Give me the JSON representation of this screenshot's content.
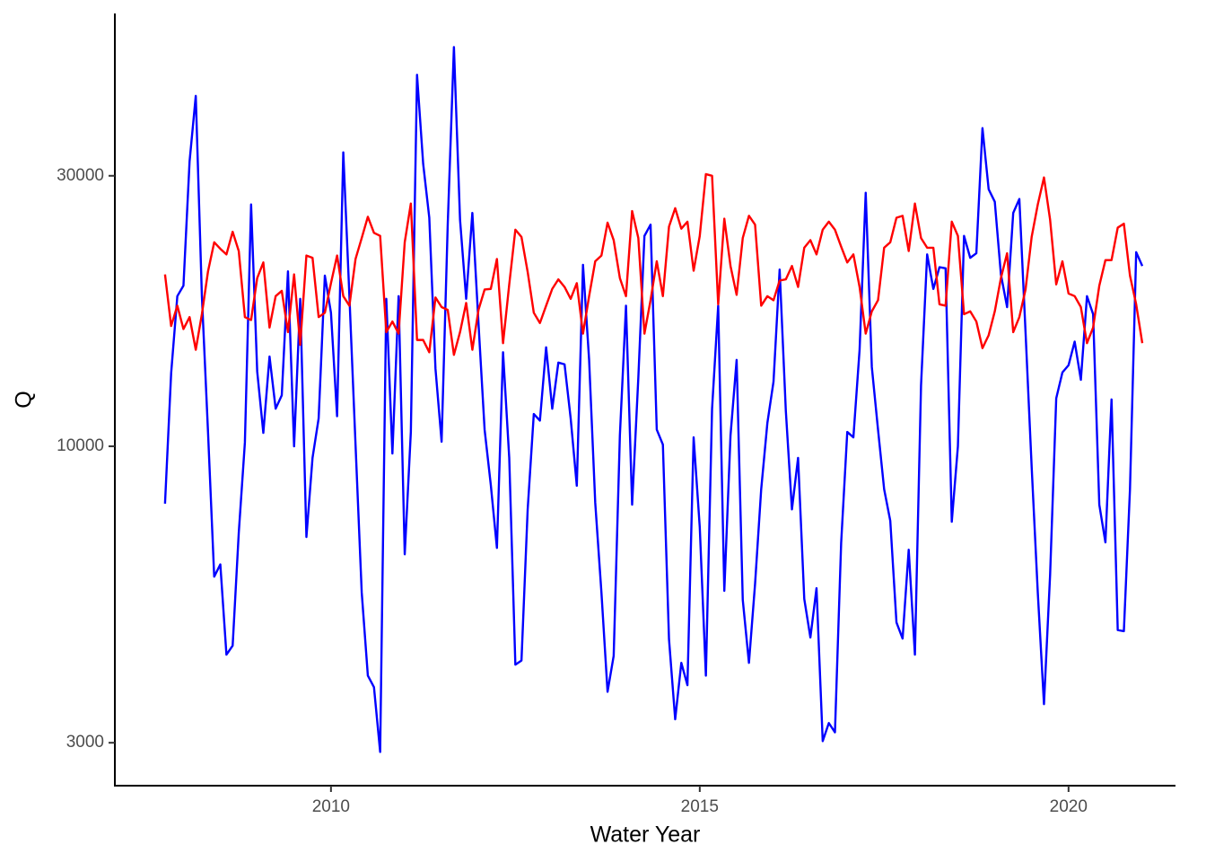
{
  "chart_data": {
    "type": "line",
    "x_label": "Water Year",
    "y_label": "Q",
    "log_y": true,
    "grid": false,
    "xlim": [
      2007.07,
      2021.45
    ],
    "xticks": [
      2010,
      2015,
      2020
    ],
    "ylim": [
      2520,
      58000
    ],
    "yticks": [
      3000,
      10000,
      30000
    ],
    "x": [
      2007.75,
      2007.833,
      2007.917,
      2008.0,
      2008.083,
      2008.167,
      2008.25,
      2008.333,
      2008.417,
      2008.5,
      2008.583,
      2008.667,
      2008.75,
      2008.833,
      2008.917,
      2009.0,
      2009.083,
      2009.167,
      2009.25,
      2009.333,
      2009.417,
      2009.5,
      2009.583,
      2009.667,
      2009.75,
      2009.833,
      2009.917,
      2010.0,
      2010.083,
      2010.167,
      2010.25,
      2010.333,
      2010.417,
      2010.5,
      2010.583,
      2010.667,
      2010.75,
      2010.833,
      2010.917,
      2011.0,
      2011.083,
      2011.167,
      2011.25,
      2011.333,
      2011.417,
      2011.5,
      2011.583,
      2011.667,
      2011.75,
      2011.833,
      2011.917,
      2012.0,
      2012.083,
      2012.167,
      2012.25,
      2012.333,
      2012.417,
      2012.5,
      2012.583,
      2012.667,
      2012.75,
      2012.833,
      2012.917,
      2013.0,
      2013.083,
      2013.167,
      2013.25,
      2013.333,
      2013.417,
      2013.5,
      2013.583,
      2013.667,
      2013.75,
      2013.833,
      2013.917,
      2014.0,
      2014.083,
      2014.167,
      2014.25,
      2014.333,
      2014.417,
      2014.5,
      2014.583,
      2014.667,
      2014.75,
      2014.833,
      2014.917,
      2015.0,
      2015.083,
      2015.167,
      2015.25,
      2015.333,
      2015.417,
      2015.5,
      2015.583,
      2015.667,
      2015.75,
      2015.833,
      2015.917,
      2016.0,
      2016.083,
      2016.167,
      2016.25,
      2016.333,
      2016.417,
      2016.5,
      2016.583,
      2016.667,
      2016.75,
      2016.833,
      2016.917,
      2017.0,
      2017.083,
      2017.167,
      2017.25,
      2017.333,
      2017.417,
      2017.5,
      2017.583,
      2017.667,
      2017.75,
      2017.833,
      2017.917,
      2018.0,
      2018.083,
      2018.167,
      2018.25,
      2018.333,
      2018.417,
      2018.5,
      2018.583,
      2018.667,
      2018.75,
      2018.833,
      2018.917,
      2019.0,
      2019.083,
      2019.167,
      2019.25,
      2019.333,
      2019.417,
      2019.5,
      2019.583,
      2019.667,
      2019.75,
      2019.833,
      2019.917,
      2020.0,
      2020.083,
      2020.167,
      2020.25,
      2020.333,
      2020.417,
      2020.5,
      2020.583,
      2020.667,
      2020.75,
      2020.833,
      2020.917,
      2021.0
    ],
    "series": [
      {
        "color": "#0000ff",
        "values": [
          7920,
          13450,
          18400,
          19200,
          31800,
          41500,
          18400,
          10600,
          5890,
          6190,
          4290,
          4450,
          7040,
          10150,
          26700,
          13550,
          10560,
          14400,
          11650,
          12300,
          20350,
          10000,
          18200,
          6920,
          9540,
          11200,
          20000,
          17200,
          11300,
          33000,
          18400,
          10070,
          5520,
          3940,
          3760,
          2890,
          18200,
          9710,
          18400,
          6450,
          10600,
          45200,
          31500,
          25300,
          13700,
          10190,
          24600,
          50600,
          25100,
          18200,
          25800,
          16500,
          10700,
          8550,
          6620,
          14650,
          9540,
          4120,
          4190,
          7740,
          11400,
          11100,
          14950,
          11650,
          14050,
          13950,
          11200,
          8520,
          20900,
          14200,
          7950,
          5520,
          3690,
          4270,
          10450,
          17700,
          7890,
          13200,
          23500,
          24600,
          10700,
          10070,
          4570,
          3300,
          4150,
          3790,
          10370,
          7200,
          3940,
          11650,
          17700,
          5560,
          10450,
          14200,
          5360,
          4150,
          5720,
          8400,
          11000,
          13000,
          20500,
          11550,
          7740,
          9540,
          5380,
          4600,
          5620,
          3020,
          3250,
          3130,
          6750,
          10600,
          10370,
          14800,
          28000,
          13800,
          10700,
          8400,
          7390,
          4890,
          4580,
          6570,
          4290,
          12800,
          21800,
          18950,
          20700,
          20600,
          7360,
          10000,
          23500,
          21500,
          21900,
          36400,
          28400,
          27000,
          20100,
          17600,
          25800,
          27300,
          15900,
          9200,
          5520,
          3510,
          5930,
          12150,
          13500,
          13900,
          15300,
          13100,
          18400,
          17100,
          7890,
          6770,
          12100,
          4740,
          4720,
          8400,
          22000,
          20800
        ]
      },
      {
        "color": "#ff0000",
        "values": [
          20100,
          16300,
          17700,
          16100,
          16900,
          14800,
          17100,
          20350,
          22900,
          22300,
          21800,
          23900,
          22100,
          16900,
          16700,
          19800,
          21100,
          16200,
          18400,
          18800,
          15900,
          20100,
          15100,
          21700,
          21500,
          16900,
          17200,
          19400,
          21700,
          18400,
          17700,
          21400,
          23300,
          25400,
          23800,
          23500,
          15900,
          16600,
          15800,
          22900,
          26800,
          15400,
          15400,
          14650,
          18300,
          17600,
          17400,
          14500,
          15900,
          17900,
          14800,
          17400,
          18900,
          18950,
          21400,
          15200,
          19300,
          24100,
          23400,
          20300,
          17200,
          16500,
          17700,
          18950,
          19700,
          19100,
          18200,
          19400,
          15800,
          18400,
          21200,
          21700,
          24800,
          23100,
          19800,
          18400,
          26000,
          23300,
          15800,
          18100,
          21200,
          18400,
          24400,
          26300,
          24200,
          24900,
          20400,
          23500,
          30200,
          30000,
          17800,
          25200,
          20800,
          18500,
          23300,
          25500,
          24600,
          17700,
          18400,
          18100,
          19600,
          19700,
          20800,
          19100,
          22400,
          23100,
          21800,
          24100,
          24900,
          24100,
          22500,
          21100,
          21800,
          19100,
          15800,
          17300,
          18100,
          22400,
          22900,
          25300,
          25500,
          22100,
          26800,
          23300,
          22400,
          22400,
          17800,
          17700,
          24900,
          23500,
          17100,
          17300,
          16600,
          14900,
          15700,
          17300,
          19800,
          21900,
          15900,
          16900,
          18900,
          23400,
          26700,
          29800,
          25100,
          19300,
          21200,
          18600,
          18400,
          17600,
          15200,
          16200,
          19200,
          21300,
          21300,
          24300,
          24700,
          20000,
          17800,
          15200
        ]
      }
    ]
  }
}
